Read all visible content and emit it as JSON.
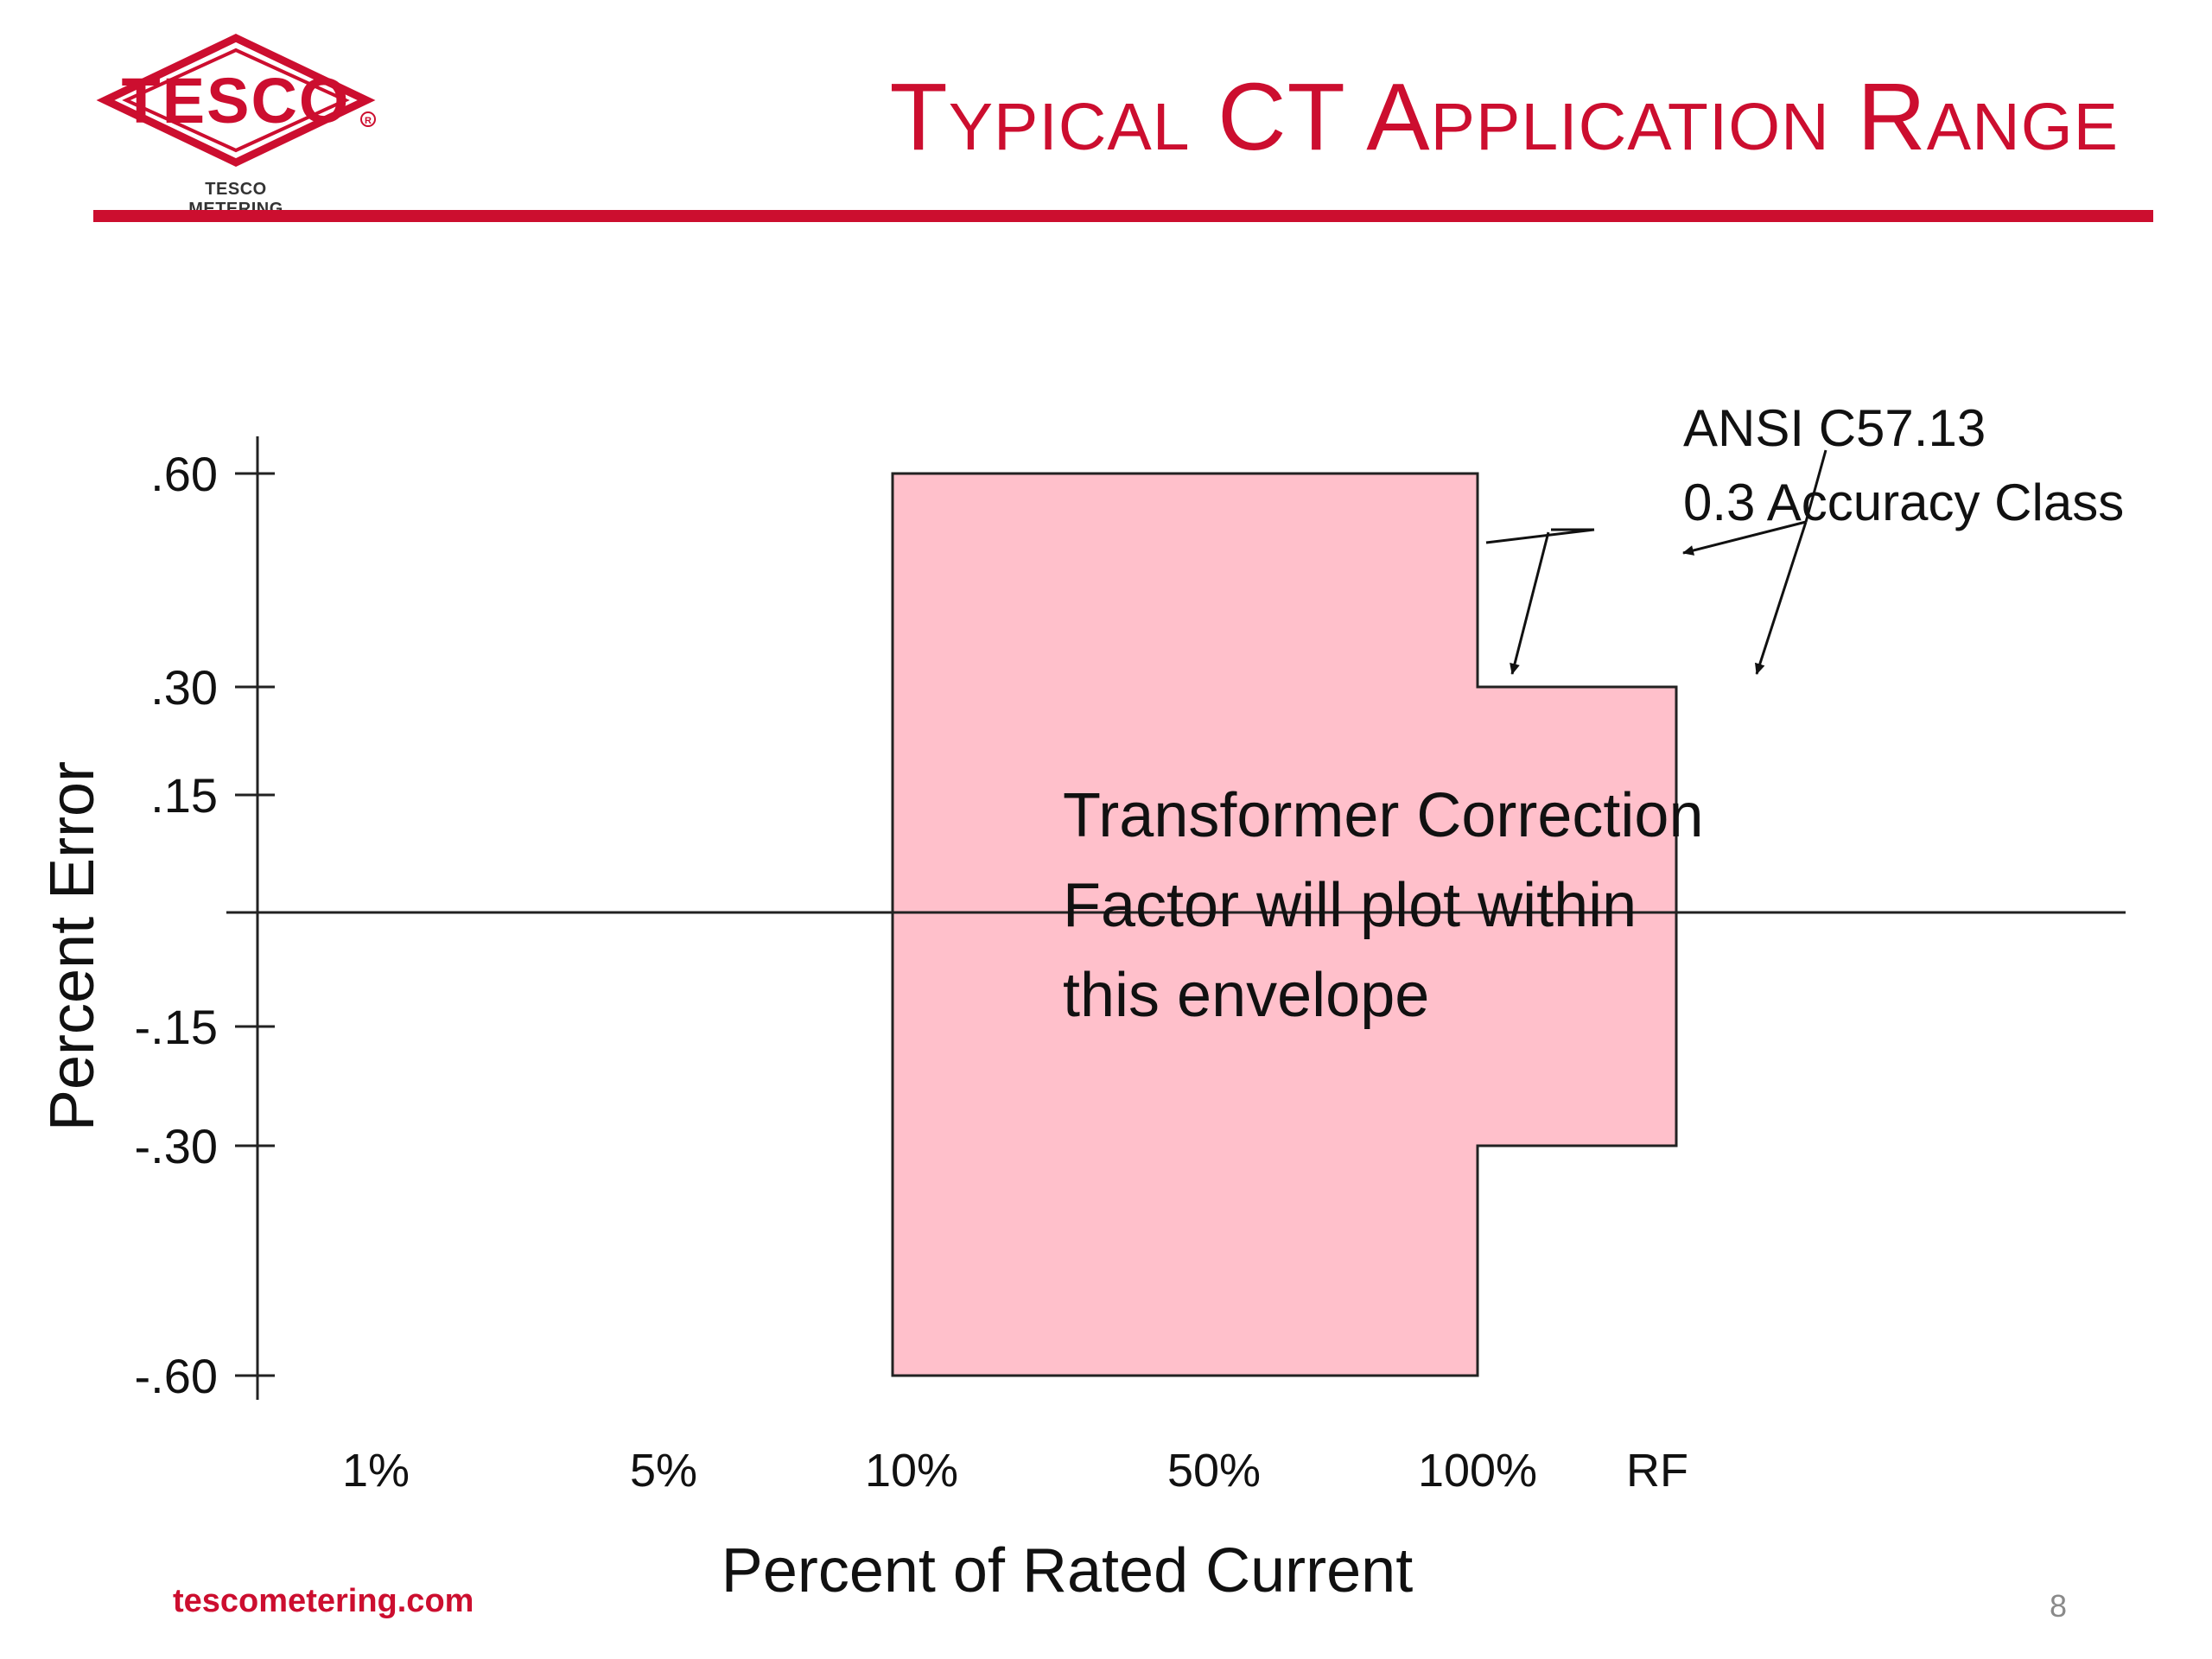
{
  "header": {
    "logo_text": "TESCO",
    "logo_caption": "TESCO METERING",
    "title": "Typical CT Application Range"
  },
  "colors": {
    "brand_red": "#cc0e2f",
    "envelope_fill": "#ffc0cb",
    "axis": "#222222"
  },
  "chart_data": {
    "type": "area",
    "xlabel": "Percent of Rated Current",
    "ylabel": "Percent Error",
    "x_categories": [
      "1%",
      "5%",
      "10%",
      "50%",
      "100%",
      "RF"
    ],
    "y_ticks": [
      {
        "label": ".60",
        "value": 0.6
      },
      {
        "label": ".30",
        "value": 0.3
      },
      {
        "label": ".15",
        "value": 0.15
      },
      {
        "label": "-.15",
        "value": -0.15
      },
      {
        "label": "-.30",
        "value": -0.3
      },
      {
        "label": "-.60",
        "value": -0.6
      }
    ],
    "ylim": [
      -0.6,
      0.6
    ],
    "envelope": [
      {
        "from": "10%",
        "to": "100%",
        "upper": 0.6,
        "lower": -0.6
      },
      {
        "from": "100%",
        "to": "RF",
        "upper": 0.3,
        "lower": -0.3
      }
    ],
    "annotations": {
      "envelope_note": [
        "Transformer Correction",
        "Factor will plot within",
        "this envelope"
      ],
      "standard": [
        "ANSI C57.13",
        "0.3 Accuracy Class"
      ]
    }
  },
  "footer": {
    "url": "tescometering.com",
    "page_number": "8"
  }
}
